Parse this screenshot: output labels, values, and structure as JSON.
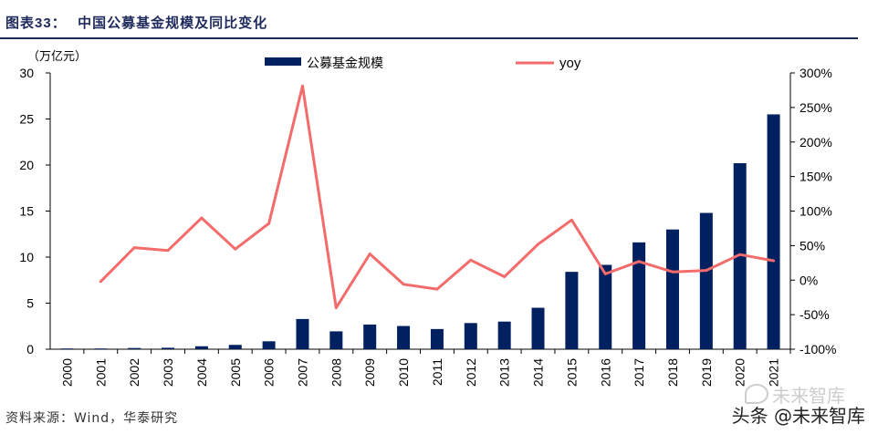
{
  "figure": {
    "title_prefix": "图表",
    "title_num": "33：",
    "title_text": "中国公募基金规模及同比变化",
    "source": "资料来源：Wind，华泰研究",
    "watermark_top": "未来智库",
    "watermark_bottom": "头条 @未来智库"
  },
  "colors": {
    "bar": "#002060",
    "line": "#f36b6b",
    "title": "#1f2a5c"
  },
  "chart_data": {
    "type": "bar",
    "title": "中国公募基金规模及同比变化",
    "left_unit_label": "（万亿元）",
    "categories": [
      "2000",
      "2001",
      "2002",
      "2003",
      "2004",
      "2005",
      "2006",
      "2007",
      "2008",
      "2009",
      "2010",
      "2011",
      "2012",
      "2013",
      "2014",
      "2015",
      "2016",
      "2017",
      "2018",
      "2019",
      "2020",
      "2021"
    ],
    "series": [
      {
        "name": "公募基金规模",
        "type": "bar",
        "axis": "left",
        "values": [
          0.08,
          0.08,
          0.13,
          0.16,
          0.32,
          0.47,
          0.86,
          3.28,
          1.94,
          2.68,
          2.52,
          2.19,
          2.84,
          3.0,
          4.5,
          8.4,
          9.16,
          11.6,
          13.0,
          14.8,
          20.2,
          25.5
        ]
      },
      {
        "name": "yoy",
        "type": "line",
        "axis": "right",
        "values": [
          null,
          -2,
          47,
          43,
          90,
          45,
          82,
          281,
          -40,
          38,
          -6,
          -13,
          29,
          5,
          52,
          87,
          9,
          27,
          12,
          14,
          37,
          28
        ]
      }
    ],
    "y_left": {
      "min": 0,
      "max": 30,
      "ticks": [
        0,
        5,
        10,
        15,
        20,
        25,
        30
      ]
    },
    "y_right": {
      "min": -100,
      "max": 300,
      "ticks": [
        -100,
        -50,
        0,
        50,
        100,
        150,
        200,
        250,
        300
      ],
      "tick_labels": [
        "-100%",
        "-50%",
        "0%",
        "50%",
        "100%",
        "150%",
        "200%",
        "250%",
        "300%"
      ]
    },
    "legend": {
      "position": "top",
      "bar_label": "公募基金规模",
      "line_label": "yoy"
    }
  }
}
